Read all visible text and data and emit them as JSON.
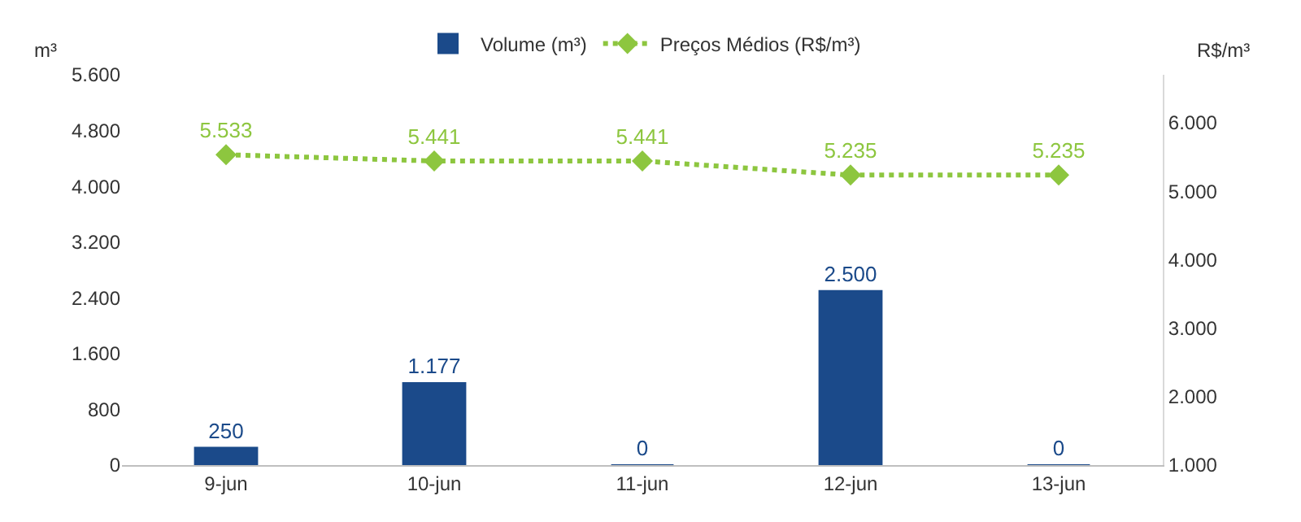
{
  "chart_data": {
    "type": "bar",
    "categories": [
      "9-jun",
      "10-jun",
      "11-jun",
      "12-jun",
      "13-jun"
    ],
    "ylabel": "m³",
    "y2label": "R$/m³",
    "series": [
      {
        "name": "Volume (m³)",
        "color": "#1b4a8a",
        "values": [
          250,
          1177,
          0,
          2500,
          0
        ],
        "value_labels": [
          "250",
          "1.177",
          "0",
          "2.500",
          "0"
        ]
      },
      {
        "name": "Preços Médios (R$/m³)",
        "type": "line",
        "axis": "y2",
        "color": "#8dc63f",
        "marker": "diamond",
        "line_style": "dotted",
        "values": [
          5533,
          5441,
          5441,
          5235,
          5235
        ],
        "value_labels": [
          "5.533",
          "5.441",
          "5.441",
          "5.235",
          "5.235"
        ]
      }
    ],
    "ylim": [
      0,
      5600
    ],
    "yticks": [
      {
        "value": 0,
        "label": "0"
      },
      {
        "value": 800,
        "label": "800"
      },
      {
        "value": 1600,
        "label": "1.600"
      },
      {
        "value": 2400,
        "label": "2.400"
      },
      {
        "value": 3200,
        "label": "3.200"
      },
      {
        "value": 4000,
        "label": "4.000"
      },
      {
        "value": 4800,
        "label": "4.800"
      },
      {
        "value": 5600,
        "label": "5.600"
      }
    ],
    "y2lim": [
      1000,
      6700
    ],
    "y2ticks": [
      {
        "value": 1000,
        "label": "1.000"
      },
      {
        "value": 2000,
        "label": "2.000"
      },
      {
        "value": 3000,
        "label": "3.000"
      },
      {
        "value": 4000,
        "label": "4.000"
      },
      {
        "value": 5000,
        "label": "5.000"
      },
      {
        "value": 6000,
        "label": "6.000"
      }
    ],
    "legend": "top"
  }
}
